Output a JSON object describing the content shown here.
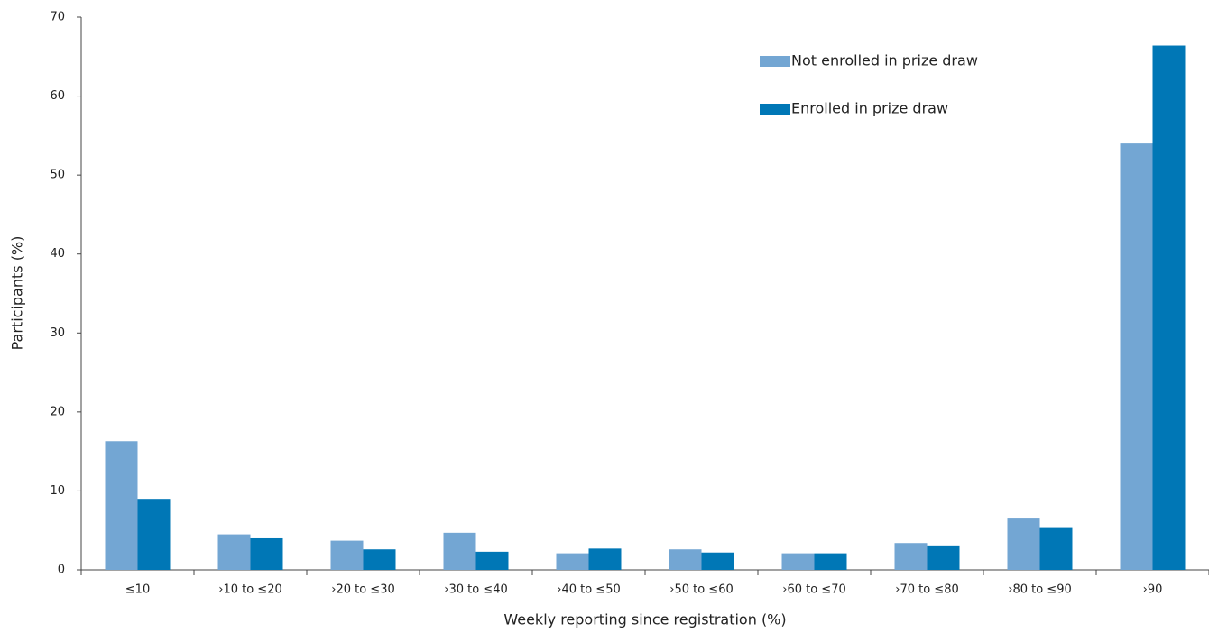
{
  "chart_data": {
    "type": "bar",
    "x_label": "Weekly reporting since registration (%)",
    "y_label": "Participants (%)",
    "categories": [
      "≤10",
      "›10 to ≤20",
      "›20 to ≤30",
      "›30 to ≤40",
      "›40 to ≤50",
      "›50 to ≤60",
      "›60 to ≤70",
      "›70 to ≤80",
      "›80 to ≤90",
      "›90"
    ],
    "series": [
      {
        "name": "Not enrolled in prize draw",
        "color": "#73a6d3",
        "values": [
          16.3,
          4.5,
          3.7,
          4.7,
          2.1,
          2.6,
          2.1,
          3.4,
          6.5,
          54.0
        ]
      },
      {
        "name": "Enrolled in prize draw",
        "color": "#0077b6",
        "values": [
          9.0,
          4.0,
          2.6,
          2.3,
          2.7,
          2.2,
          2.1,
          3.1,
          5.3,
          66.4
        ]
      }
    ],
    "ylim": [
      0,
      70
    ],
    "yticks": [
      0,
      10,
      20,
      30,
      40,
      50,
      60,
      70
    ],
    "legend": "upper-right",
    "grid": false
  }
}
